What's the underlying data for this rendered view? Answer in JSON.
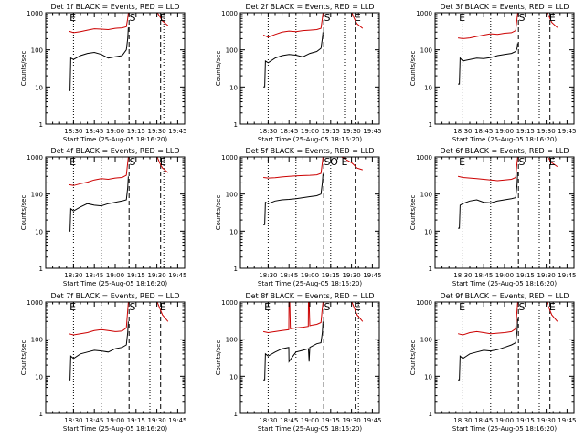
{
  "colors": {
    "events": "#000000",
    "lld": "#cc0000",
    "axis": "#000000"
  },
  "shared": {
    "ylabel": "Counts/sec",
    "xlabel": "Start Time (25-Aug-05 18:16:20)",
    "xtick_labels": [
      "18:30",
      "18:45",
      "19:00",
      "19:15",
      "19:30",
      "19:45"
    ],
    "ytick_labels": [
      "1",
      "10",
      "100",
      "1000"
    ]
  },
  "chart_data": [
    {
      "type": "line",
      "title": "Det 1f BLACK = Events, RED = LLD",
      "markers": [
        {
          "text": "E",
          "t": 16.5
        },
        {
          "text": "S",
          "t": 59.5
        },
        {
          "text": "E",
          "t": 81.5
        }
      ],
      "dotted_lines": [
        20,
        40,
        85
      ],
      "dashed_lines": [
        60,
        82.7
      ],
      "series": [
        {
          "x": [
            16.5,
            20,
            25,
            30,
            35,
            40,
            45,
            50,
            55,
            58,
            59,
            59.5,
            61,
            65,
            70,
            75,
            80,
            82,
            84,
            88
          ],
          "y": [
            320,
            290,
            310,
            340,
            370,
            360,
            350,
            380,
            390,
            420,
            700,
            1000,
            1100,
            1100,
            1100,
            1100,
            1100,
            800,
            600,
            450
          ]
        },
        {
          "x": [
            16.5,
            17.5,
            18,
            20,
            25,
            30,
            35,
            40,
            45,
            50,
            55,
            58,
            59,
            59.5
          ],
          "y": [
            8,
            8,
            60,
            55,
            70,
            80,
            85,
            75,
            60,
            65,
            70,
            100,
            200,
            400
          ]
        }
      ]
    },
    {
      "type": "line",
      "title": "Det 2f BLACK = Events, RED = LLD",
      "markers": [
        {
          "text": "S",
          "t": 59.5
        },
        {
          "text": "E",
          "t": 81.5
        }
      ],
      "dotted_lines": [
        20,
        40,
        75
      ],
      "dashed_lines": [
        60,
        82.7
      ],
      "series": [
        {
          "x": [
            16.5,
            20,
            25,
            30,
            35,
            40,
            45,
            50,
            55,
            58,
            59,
            59.5,
            61,
            65,
            70,
            75,
            80,
            82,
            84,
            88
          ],
          "y": [
            250,
            220,
            260,
            300,
            320,
            310,
            330,
            340,
            350,
            380,
            700,
            1000,
            1100,
            1100,
            1100,
            1100,
            1100,
            700,
            500,
            380
          ]
        },
        {
          "x": [
            16.5,
            17.5,
            18,
            20,
            25,
            30,
            35,
            40,
            45,
            50,
            55,
            58,
            59,
            59.5
          ],
          "y": [
            10,
            10,
            50,
            45,
            60,
            70,
            75,
            72,
            65,
            80,
            90,
            110,
            200,
            300
          ]
        }
      ]
    },
    {
      "type": "line",
      "title": "Det 3f BLACK = Events, RED = LLD",
      "markers": [
        {
          "text": "E",
          "t": 16.5
        },
        {
          "text": "S",
          "t": 59.5
        },
        {
          "text": "E",
          "t": 81.5
        }
      ],
      "dotted_lines": [
        20,
        40,
        75
      ],
      "dashed_lines": [
        60,
        82.7
      ],
      "series": [
        {
          "x": [
            16.5,
            20,
            25,
            30,
            35,
            40,
            45,
            50,
            55,
            58,
            59,
            59.5,
            61,
            65,
            70,
            75,
            80,
            82,
            84,
            88
          ],
          "y": [
            210,
            200,
            210,
            230,
            250,
            270,
            260,
            280,
            290,
            330,
            700,
            1000,
            1100,
            1100,
            1100,
            1100,
            1100,
            800,
            550,
            400
          ]
        },
        {
          "x": [
            16.5,
            17.5,
            18,
            20,
            25,
            30,
            35,
            40,
            45,
            50,
            55,
            58,
            59,
            59.5
          ],
          "y": [
            12,
            12,
            60,
            50,
            55,
            60,
            58,
            62,
            70,
            75,
            80,
            90,
            110,
            150
          ]
        }
      ]
    },
    {
      "type": "line",
      "title": "Det 4f BLACK = Events, RED = LLD",
      "markers": [
        {
          "text": "E",
          "t": 16.5
        },
        {
          "text": "S",
          "t": 59.5
        },
        {
          "text": "E",
          "t": 81.5
        }
      ],
      "dotted_lines": [
        20,
        40,
        85
      ],
      "dashed_lines": [
        60,
        82.7
      ],
      "series": [
        {
          "x": [
            16.5,
            20,
            25,
            30,
            35,
            40,
            45,
            50,
            55,
            58,
            59,
            59.5,
            61,
            65,
            70,
            75,
            80,
            82,
            84,
            88
          ],
          "y": [
            180,
            170,
            190,
            210,
            240,
            260,
            250,
            270,
            280,
            320,
            700,
            1000,
            1100,
            1100,
            1100,
            1100,
            1100,
            700,
            500,
            380
          ]
        },
        {
          "x": [
            16.5,
            17.5,
            18,
            20,
            25,
            30,
            35,
            40,
            45,
            50,
            55,
            58,
            59,
            59.5
          ],
          "y": [
            10,
            10,
            40,
            35,
            45,
            55,
            50,
            48,
            55,
            60,
            65,
            70,
            150,
            300
          ]
        }
      ]
    },
    {
      "type": "line",
      "title": "Det 5f BLACK = Events, RED = LLD",
      "markers": [
        {
          "text": "S",
          "t": 59.5
        },
        {
          "text": "O",
          "t": 64
        },
        {
          "text": "E",
          "t": 72
        }
      ],
      "dotted_lines": [
        20,
        40,
        65
      ],
      "dashed_lines": [
        60,
        82.7
      ],
      "series": [
        {
          "x": [
            16.5,
            20,
            25,
            30,
            35,
            40,
            45,
            50,
            55,
            58,
            59,
            59.5,
            61,
            65,
            70,
            72,
            75,
            80,
            82,
            84,
            88
          ],
          "y": [
            280,
            270,
            275,
            290,
            300,
            310,
            315,
            320,
            330,
            360,
            700,
            1000,
            1100,
            1100,
            1100,
            1100,
            900,
            700,
            600,
            500,
            450
          ]
        },
        {
          "x": [
            16.5,
            17.5,
            18,
            20,
            25,
            30,
            35,
            40,
            45,
            50,
            55,
            58,
            59,
            59.5
          ],
          "y": [
            15,
            15,
            60,
            55,
            65,
            70,
            72,
            75,
            80,
            85,
            90,
            100,
            200,
            350
          ]
        }
      ]
    },
    {
      "type": "line",
      "title": "Det 6f BLACK = Events, RED = LLD",
      "markers": [
        {
          "text": "E",
          "t": 16.5
        },
        {
          "text": "S",
          "t": 59.5
        },
        {
          "text": "E",
          "t": 81.5
        }
      ],
      "dotted_lines": [
        20,
        40,
        75
      ],
      "dashed_lines": [
        60,
        82.7
      ],
      "series": [
        {
          "x": [
            16.5,
            20,
            25,
            30,
            35,
            40,
            45,
            50,
            55,
            58,
            59,
            59.5,
            61,
            65,
            70,
            75,
            80,
            82,
            84,
            88
          ],
          "y": [
            300,
            280,
            270,
            260,
            250,
            240,
            230,
            240,
            250,
            280,
            700,
            1000,
            1100,
            1100,
            1100,
            1100,
            1100,
            900,
            700,
            550
          ]
        },
        {
          "x": [
            16.5,
            17.5,
            18,
            20,
            25,
            30,
            35,
            40,
            45,
            50,
            55,
            58,
            59,
            59.5
          ],
          "y": [
            12,
            12,
            50,
            55,
            65,
            70,
            60,
            58,
            65,
            70,
            75,
            80,
            180,
            400
          ]
        }
      ]
    },
    {
      "type": "line",
      "title": "Det 7f BLACK = Events, RED = LLD",
      "markers": [
        {
          "text": "E",
          "t": 16.5
        },
        {
          "text": "S",
          "t": 59.5
        },
        {
          "text": "E",
          "t": 81.5
        }
      ],
      "dotted_lines": [
        20,
        40,
        75
      ],
      "dashed_lines": [
        60,
        82.7
      ],
      "series": [
        {
          "x": [
            16.5,
            20,
            25,
            30,
            35,
            40,
            45,
            50,
            55,
            58,
            59,
            59.5,
            61,
            65,
            70,
            75,
            80,
            82,
            84,
            88
          ],
          "y": [
            140,
            130,
            140,
            150,
            170,
            180,
            170,
            160,
            165,
            200,
            600,
            1000,
            1100,
            1100,
            1100,
            1100,
            1100,
            700,
            450,
            300
          ]
        },
        {
          "x": [
            16.5,
            17.5,
            18,
            20,
            25,
            30,
            35,
            40,
            45,
            50,
            55,
            58,
            59,
            59.5
          ],
          "y": [
            8,
            8,
            35,
            30,
            40,
            45,
            50,
            48,
            45,
            55,
            60,
            70,
            150,
            300
          ]
        }
      ]
    },
    {
      "type": "line",
      "title": "Det 8f BLACK = Events, RED = LLD",
      "markers": [
        {
          "text": "E",
          "t": 16.5
        },
        {
          "text": "S",
          "t": 59.5
        },
        {
          "text": "E",
          "t": 81.5
        }
      ],
      "dotted_lines": [
        20,
        40,
        85
      ],
      "dashed_lines": [
        60,
        82.7
      ],
      "series": [
        {
          "x": [
            16.5,
            20,
            25,
            30,
            34.9,
            35,
            35.5,
            36,
            40,
            45,
            48.9,
            49,
            49.5,
            50,
            52,
            55,
            58,
            59,
            59.5,
            61,
            65,
            70,
            75,
            80,
            82,
            84,
            88
          ],
          "y": [
            160,
            150,
            160,
            170,
            180,
            1100,
            1100,
            190,
            200,
            210,
            220,
            1100,
            1100,
            230,
            240,
            250,
            280,
            700,
            1000,
            1100,
            1100,
            1100,
            1100,
            1100,
            700,
            450,
            300
          ]
        },
        {
          "x": [
            16.5,
            17.5,
            18,
            20,
            25,
            30,
            34.9,
            35,
            40,
            45,
            49,
            49.5,
            50,
            55,
            58,
            59,
            59.5
          ],
          "y": [
            8,
            8,
            40,
            35,
            45,
            55,
            60,
            25,
            45,
            50,
            55,
            25,
            60,
            75,
            80,
            150,
            300
          ]
        }
      ]
    },
    {
      "type": "line",
      "title": "Det 9f BLACK = Events, RED = LLD",
      "markers": [
        {
          "text": "E",
          "t": 16.5
        },
        {
          "text": "S",
          "t": 59.5
        },
        {
          "text": "E",
          "t": 81.5
        }
      ],
      "dotted_lines": [
        20,
        40,
        75
      ],
      "dashed_lines": [
        60,
        82.7
      ],
      "series": [
        {
          "x": [
            16.5,
            20,
            25,
            30,
            35,
            40,
            45,
            50,
            55,
            58,
            59,
            59.5,
            61,
            65,
            70,
            75,
            80,
            82,
            84,
            88
          ],
          "y": [
            140,
            130,
            150,
            160,
            150,
            140,
            145,
            150,
            160,
            190,
            600,
            1000,
            1100,
            1100,
            1100,
            1100,
            1100,
            700,
            450,
            300
          ]
        },
        {
          "x": [
            16.5,
            17.5,
            18,
            20,
            25,
            30,
            35,
            40,
            45,
            50,
            55,
            58,
            59,
            59.5
          ],
          "y": [
            8,
            8,
            35,
            30,
            40,
            45,
            50,
            48,
            52,
            60,
            70,
            80,
            160,
            350
          ]
        }
      ]
    }
  ]
}
